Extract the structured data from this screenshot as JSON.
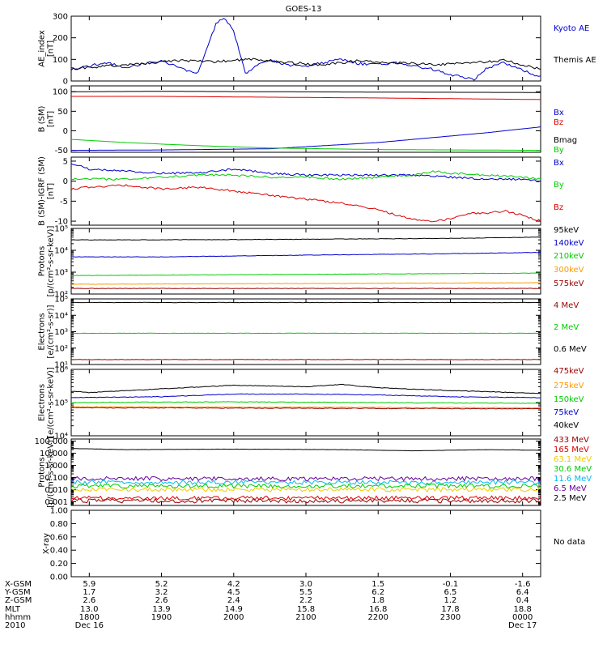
{
  "title": "GOES-13",
  "colors": {
    "black": "#000000",
    "blue": "#0000cc",
    "green": "#00cc00",
    "red": "#dd0000",
    "darkred": "#990000",
    "orange": "#ff9900",
    "cyan": "#00bbee",
    "purple": "#660099",
    "yellow": "#eecc00"
  },
  "time_axis": {
    "start": "2010-12-16 17:45",
    "end": "2010-12-17 00:15",
    "ticks": [
      "1800",
      "1900",
      "2000",
      "2100",
      "2200",
      "2300",
      "0000"
    ],
    "x_gsm": [
      "5.9",
      "5.2",
      "4.2",
      "3.0",
      "1.5",
      "-0.1",
      "-1.6"
    ],
    "y_gsm": [
      "1.7",
      "3.2",
      "4.5",
      "5.5",
      "6.2",
      "6.5",
      "6.4"
    ],
    "z_gsm": [
      "2.6",
      "2.6",
      "2.4",
      "2.2",
      "1.8",
      "1.2",
      "0.4"
    ],
    "mlt": [
      "13.0",
      "13.9",
      "14.9",
      "15.8",
      "16.8",
      "17.8",
      "18.8"
    ],
    "date_left": "Dec 16",
    "date_right": "Dec 17",
    "year": "2010"
  },
  "row_labels": [
    "X-GSM",
    "Y-GSM",
    "Z-GSM",
    "MLT",
    "hhmm",
    "2010"
  ],
  "chart_data": [
    {
      "type": "line",
      "id": "ae",
      "ylabel": "AE_index\n[nT]",
      "ylim": [
        0,
        300
      ],
      "yticks": [
        "0",
        "100",
        "200",
        "300"
      ],
      "scale": "linear",
      "series": [
        {
          "name": "Kyoto AE",
          "color": "#0000cc",
          "x": [
            "17:45",
            "18:00",
            "18:15",
            "18:30",
            "18:45",
            "19:00",
            "19:15",
            "19:30",
            "19:45",
            "19:52",
            "20:00",
            "20:10",
            "20:20",
            "20:30",
            "20:45",
            "21:00",
            "21:15",
            "21:30",
            "21:45",
            "22:00",
            "22:15",
            "22:30",
            "22:45",
            "23:00",
            "23:10",
            "23:20",
            "23:30",
            "23:45",
            "00:00",
            "00:15"
          ],
          "y": [
            55,
            70,
            85,
            60,
            80,
            95,
            60,
            30,
            260,
            295,
            230,
            30,
            80,
            95,
            75,
            70,
            85,
            100,
            80,
            75,
            85,
            70,
            55,
            30,
            20,
            5,
            60,
            85,
            50,
            20
          ]
        },
        {
          "name": "Themis AE",
          "color": "#000000",
          "x": [
            "17:45",
            "18:15",
            "18:45",
            "19:15",
            "19:45",
            "20:15",
            "20:45",
            "21:15",
            "21:45",
            "22:15",
            "22:45",
            "23:15",
            "23:45",
            "00:15"
          ],
          "y": [
            55,
            70,
            80,
            95,
            90,
            100,
            85,
            75,
            95,
            85,
            75,
            85,
            95,
            55
          ]
        }
      ]
    },
    {
      "type": "line",
      "id": "bsm",
      "ylabel": "B (SM)\n[nT]",
      "ylim": [
        -55,
        115
      ],
      "yticks": [
        "-50",
        "0",
        "50",
        "100"
      ],
      "scale": "linear",
      "series": [
        {
          "name": "Bx",
          "color": "#0000cc",
          "x": [
            "17:45",
            "19:00",
            "20:30",
            "22:00",
            "23:30",
            "00:15"
          ],
          "y": [
            -50,
            -49,
            -46,
            -30,
            -5,
            10
          ]
        },
        {
          "name": "By",
          "color": "#00cc00",
          "x": [
            "17:45",
            "18:30",
            "19:30",
            "20:30",
            "22:00",
            "00:15"
          ],
          "y": [
            -22,
            -30,
            -38,
            -44,
            -48,
            -50
          ]
        },
        {
          "name": "Bz",
          "color": "#dd0000",
          "x": [
            "17:45",
            "19:00",
            "20:30",
            "22:00",
            "00:15"
          ],
          "y": [
            88,
            88,
            86,
            84,
            80
          ]
        },
        {
          "name": "Bmag",
          "color": "#000000",
          "x": [
            "17:45",
            "19:00",
            "20:30",
            "22:00",
            "00:15"
          ],
          "y": [
            100,
            101,
            100,
            99,
            98
          ]
        }
      ]
    },
    {
      "type": "line",
      "id": "bigrf",
      "ylabel": "B (SM)-IGRF (SM)\n[nT]",
      "ylim": [
        -11,
        6
      ],
      "yticks": [
        "-10",
        "-5",
        "0",
        "5"
      ],
      "scale": "linear",
      "series": [
        {
          "name": "Bx",
          "color": "#0000cc",
          "x": [
            "17:45",
            "18:00",
            "18:30",
            "19:00",
            "19:30",
            "20:00",
            "20:30",
            "21:00",
            "21:30",
            "22:00",
            "22:30",
            "23:00",
            "23:30",
            "00:00",
            "00:15"
          ],
          "y": [
            4.5,
            3,
            2.5,
            2,
            2,
            3,
            2,
            1.5,
            1.5,
            1.5,
            1.5,
            1,
            0.5,
            0.5,
            0
          ]
        },
        {
          "name": "By",
          "color": "#00cc00",
          "x": [
            "17:45",
            "18:00",
            "18:30",
            "19:00",
            "19:30",
            "20:00",
            "20:30",
            "21:00",
            "21:30",
            "22:00",
            "22:30",
            "22:45",
            "23:00",
            "23:30",
            "00:00",
            "00:15"
          ],
          "y": [
            0.5,
            0.5,
            0.5,
            1,
            1.5,
            1.5,
            1,
            1,
            0.5,
            1,
            1.5,
            2.5,
            2,
            1.5,
            1,
            0.5
          ]
        },
        {
          "name": "Bz",
          "color": "#dd0000",
          "x": [
            "17:45",
            "18:00",
            "18:30",
            "19:00",
            "19:30",
            "20:00",
            "20:30",
            "21:00",
            "21:30",
            "22:00",
            "22:15",
            "22:30",
            "22:45",
            "23:00",
            "23:15",
            "23:30",
            "23:45",
            "00:00",
            "00:15"
          ],
          "y": [
            -2,
            -1.5,
            -1,
            -2,
            -1.5,
            -2.5,
            -3.5,
            -4.5,
            -5.5,
            -7,
            -8.5,
            -9.5,
            -10,
            -9.5,
            -8,
            -8,
            -7.5,
            -8.5,
            -10
          ]
        }
      ]
    },
    {
      "type": "line",
      "id": "protons_low",
      "ylabel": "Protons\n[p/(cm²-s-sr-keV)]",
      "ylim": [
        100,
        100000
      ],
      "yticks": [
        "10²",
        "10³",
        "10⁴",
        "10⁵"
      ],
      "scale": "log",
      "series": [
        {
          "name": "575keV",
          "color": "#990000",
          "x": [
            "17:45",
            "00:15"
          ],
          "y": [
            180,
            180
          ]
        },
        {
          "name": "300keV",
          "color": "#ff9900",
          "x": [
            "17:45",
            "00:15"
          ],
          "y": [
            280,
            330
          ]
        },
        {
          "name": "210keV",
          "color": "#00cc00",
          "x": [
            "17:45",
            "00:15"
          ],
          "y": [
            700,
            900
          ]
        },
        {
          "name": "140keV",
          "color": "#0000cc",
          "x": [
            "17:45",
            "19:00",
            "21:00",
            "23:00",
            "00:15"
          ],
          "y": [
            5000,
            5000,
            6000,
            7000,
            8000
          ]
        },
        {
          "name": "95keV",
          "color": "#000000",
          "x": [
            "17:45",
            "19:00",
            "21:00",
            "23:00",
            "00:15"
          ],
          "y": [
            30000,
            30000,
            32000,
            35000,
            40000
          ]
        }
      ]
    },
    {
      "type": "line",
      "id": "electrons_mev",
      "ylabel": "Electrons\n[e/(cm²-s-sr)]",
      "ylim": [
        10,
        100000
      ],
      "yticks": [
        "10¹",
        "10²",
        "10³",
        "10⁴",
        "10⁵"
      ],
      "scale": "log",
      "series": [
        {
          "name": "4 MeV",
          "color": "#990000",
          "x": [
            "17:45",
            "00:15"
          ],
          "y": [
            20,
            20
          ]
        },
        {
          "name": "2 MeV",
          "color": "#00cc00",
          "x": [
            "17:45",
            "00:15"
          ],
          "y": [
            800,
            800
          ]
        },
        {
          "name": "0.6 MeV",
          "color": "#000000",
          "x": [
            "17:45",
            "00:15"
          ],
          "y": [
            60000,
            60000
          ]
        }
      ]
    },
    {
      "type": "line",
      "id": "electrons_kev",
      "ylabel": "Electrons\n[e/(cm²-s-sr-keV)]",
      "ylim": [
        10000,
        1000000
      ],
      "yticks": [
        "10⁴",
        "10⁵",
        "10⁶"
      ],
      "scale": "log",
      "series": [
        {
          "name": "475keV",
          "color": "#990000",
          "x": [
            "17:45",
            "00:15"
          ],
          "y": [
            70000,
            65000
          ]
        },
        {
          "name": "275keV",
          "color": "#ff9900",
          "x": [
            "17:45",
            "00:15"
          ],
          "y": [
            75000,
            70000
          ]
        },
        {
          "name": "150keV",
          "color": "#00cc00",
          "x": [
            "17:45",
            "20:00",
            "22:00",
            "00:15"
          ],
          "y": [
            100000,
            105000,
            100000,
            95000
          ]
        },
        {
          "name": "75keV",
          "color": "#0000cc",
          "x": [
            "17:45",
            "19:00",
            "20:00",
            "21:00",
            "22:00",
            "23:00",
            "00:15"
          ],
          "y": [
            140000,
            150000,
            180000,
            180000,
            170000,
            150000,
            140000
          ]
        },
        {
          "name": "40keV",
          "color": "#000000",
          "x": [
            "17:45",
            "18:00",
            "19:00",
            "20:00",
            "21:00",
            "21:30",
            "22:00",
            "23:00",
            "00:15"
          ],
          "y": [
            220000,
            200000,
            260000,
            330000,
            300000,
            350000,
            280000,
            230000,
            190000
          ]
        }
      ]
    },
    {
      "type": "line",
      "id": "protons_mev",
      "ylabel": "Protons\n[p/(cm²-s-sr-keV)]",
      "ylim": [
        0.0005,
        150
      ],
      "yticks": [
        "0.001",
        "0.010",
        "0.100",
        "1.000",
        "10.000",
        "100.000"
      ],
      "scale": "log",
      "series": [
        {
          "name": "433 MeV",
          "color": "#990000",
          "x": [
            "17:45",
            "00:15"
          ],
          "y": [
            0.0012,
            0.0012
          ]
        },
        {
          "name": "165 MeV",
          "color": "#dd0000",
          "x": [
            "17:45",
            "00:15"
          ],
          "y": [
            0.002,
            0.002
          ]
        },
        {
          "name": "63.1 MeV",
          "color": "#eecc00",
          "x": [
            "17:45",
            "00:15"
          ],
          "y": [
            0.01,
            0.01
          ]
        },
        {
          "name": "30.6 MeV",
          "color": "#00cc00",
          "x": [
            "17:45",
            "00:15"
          ],
          "y": [
            0.02,
            0.02
          ]
        },
        {
          "name": "11.6 MeV",
          "color": "#00bbee",
          "x": [
            "17:45",
            "00:15"
          ],
          "y": [
            0.04,
            0.04
          ]
        },
        {
          "name": "6.5 MeV",
          "color": "#660099",
          "x": [
            "17:45",
            "00:15"
          ],
          "y": [
            0.08,
            0.08
          ]
        },
        {
          "name": "2.5 MeV",
          "color": "#000000",
          "x": [
            "17:45",
            "18:30",
            "20:00",
            "21:30",
            "22:30",
            "23:30",
            "00:15"
          ],
          "y": [
            25,
            20,
            22,
            20,
            16,
            20,
            18
          ]
        }
      ]
    },
    {
      "type": "line",
      "id": "xray",
      "ylabel": "X-ray",
      "ylim": [
        0,
        1
      ],
      "yticks": [
        "0.00",
        "0.20",
        "0.40",
        "0.60",
        "0.80",
        "1.00"
      ],
      "scale": "linear",
      "series": [],
      "note": "No data"
    }
  ]
}
